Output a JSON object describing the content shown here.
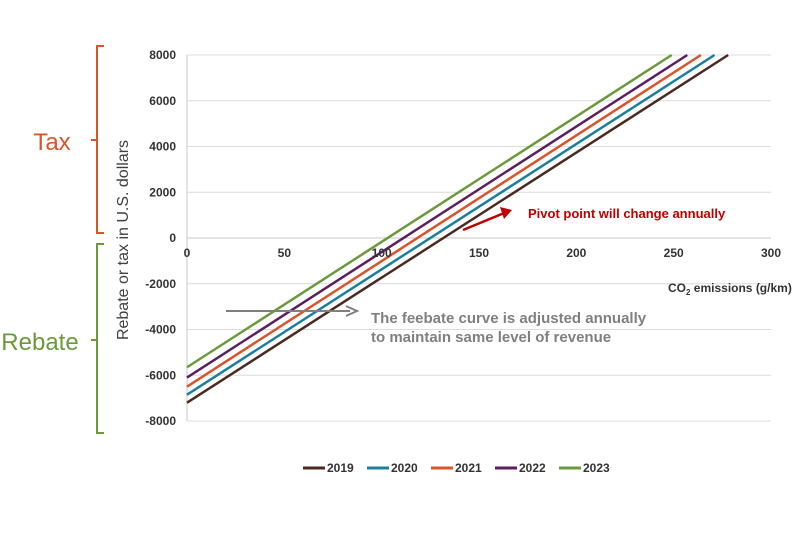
{
  "labels": {
    "tax": "Tax",
    "rebate": "Rebate",
    "tax_color": "#d9532b",
    "rebate_color": "#6b9a3a"
  },
  "annotations": {
    "pivot": "Pivot point will change annually",
    "adjust_line1": "The feebate curve is adjusted annually",
    "adjust_line2": "to maintain same level of revenue",
    "pivot_color": "#c00000",
    "adjust_color": "#808080"
  },
  "chart_data": {
    "type": "line",
    "ylabel": "Rebate or tax in U.S. dollars",
    "xlabel_pre": "CO",
    "xlabel_sub": "2",
    "xlabel_post": " emissions (g/km)",
    "xlim": [
      0,
      300
    ],
    "ylim": [
      -8000,
      8000
    ],
    "xticks": [
      0,
      50,
      100,
      150,
      200,
      250,
      300
    ],
    "yticks": [
      8000,
      6000,
      4000,
      2000,
      0,
      -2000,
      -4000,
      -6000,
      -8000
    ],
    "grid": true,
    "legend": "bottom",
    "series": [
      {
        "name": "2019",
        "color": "#4a2a1f",
        "x": [
          0,
          278
        ],
        "y": [
          -7200,
          8000
        ]
      },
      {
        "name": "2020",
        "color": "#1b7f9c",
        "x": [
          0,
          271
        ],
        "y": [
          -6850,
          8000
        ]
      },
      {
        "name": "2021",
        "color": "#d9532b",
        "x": [
          0,
          264
        ],
        "y": [
          -6500,
          8000
        ]
      },
      {
        "name": "2022",
        "color": "#5c1f5e",
        "x": [
          0,
          257
        ],
        "y": [
          -6100,
          8000
        ]
      },
      {
        "name": "2023",
        "color": "#6b9a3a",
        "x": [
          0,
          249
        ],
        "y": [
          -5650,
          8000
        ]
      }
    ]
  }
}
